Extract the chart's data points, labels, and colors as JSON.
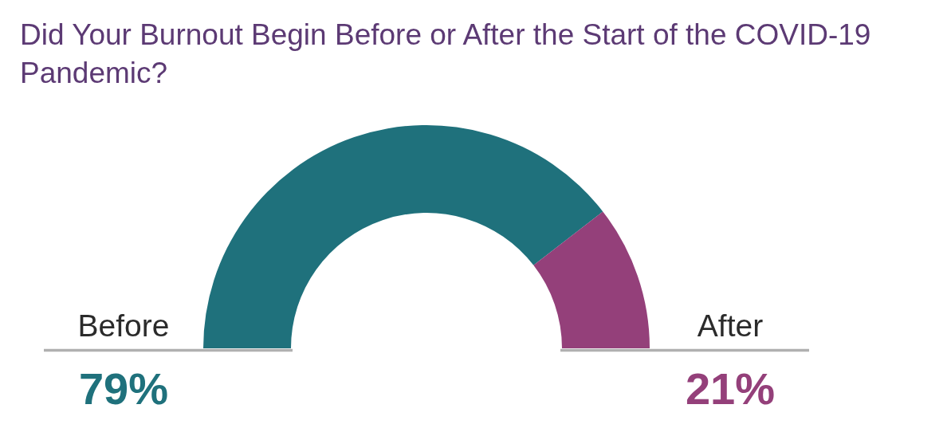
{
  "chart_data": {
    "type": "donut",
    "title": "Did Your Burnout Begin Before or After the Start of the COVID-19 Pandemic?",
    "categories": [
      "Before",
      "After"
    ],
    "values": [
      79,
      21
    ],
    "colors": [
      "#1f717c",
      "#94407a"
    ],
    "value_labels": [
      "79%",
      "21%"
    ]
  }
}
